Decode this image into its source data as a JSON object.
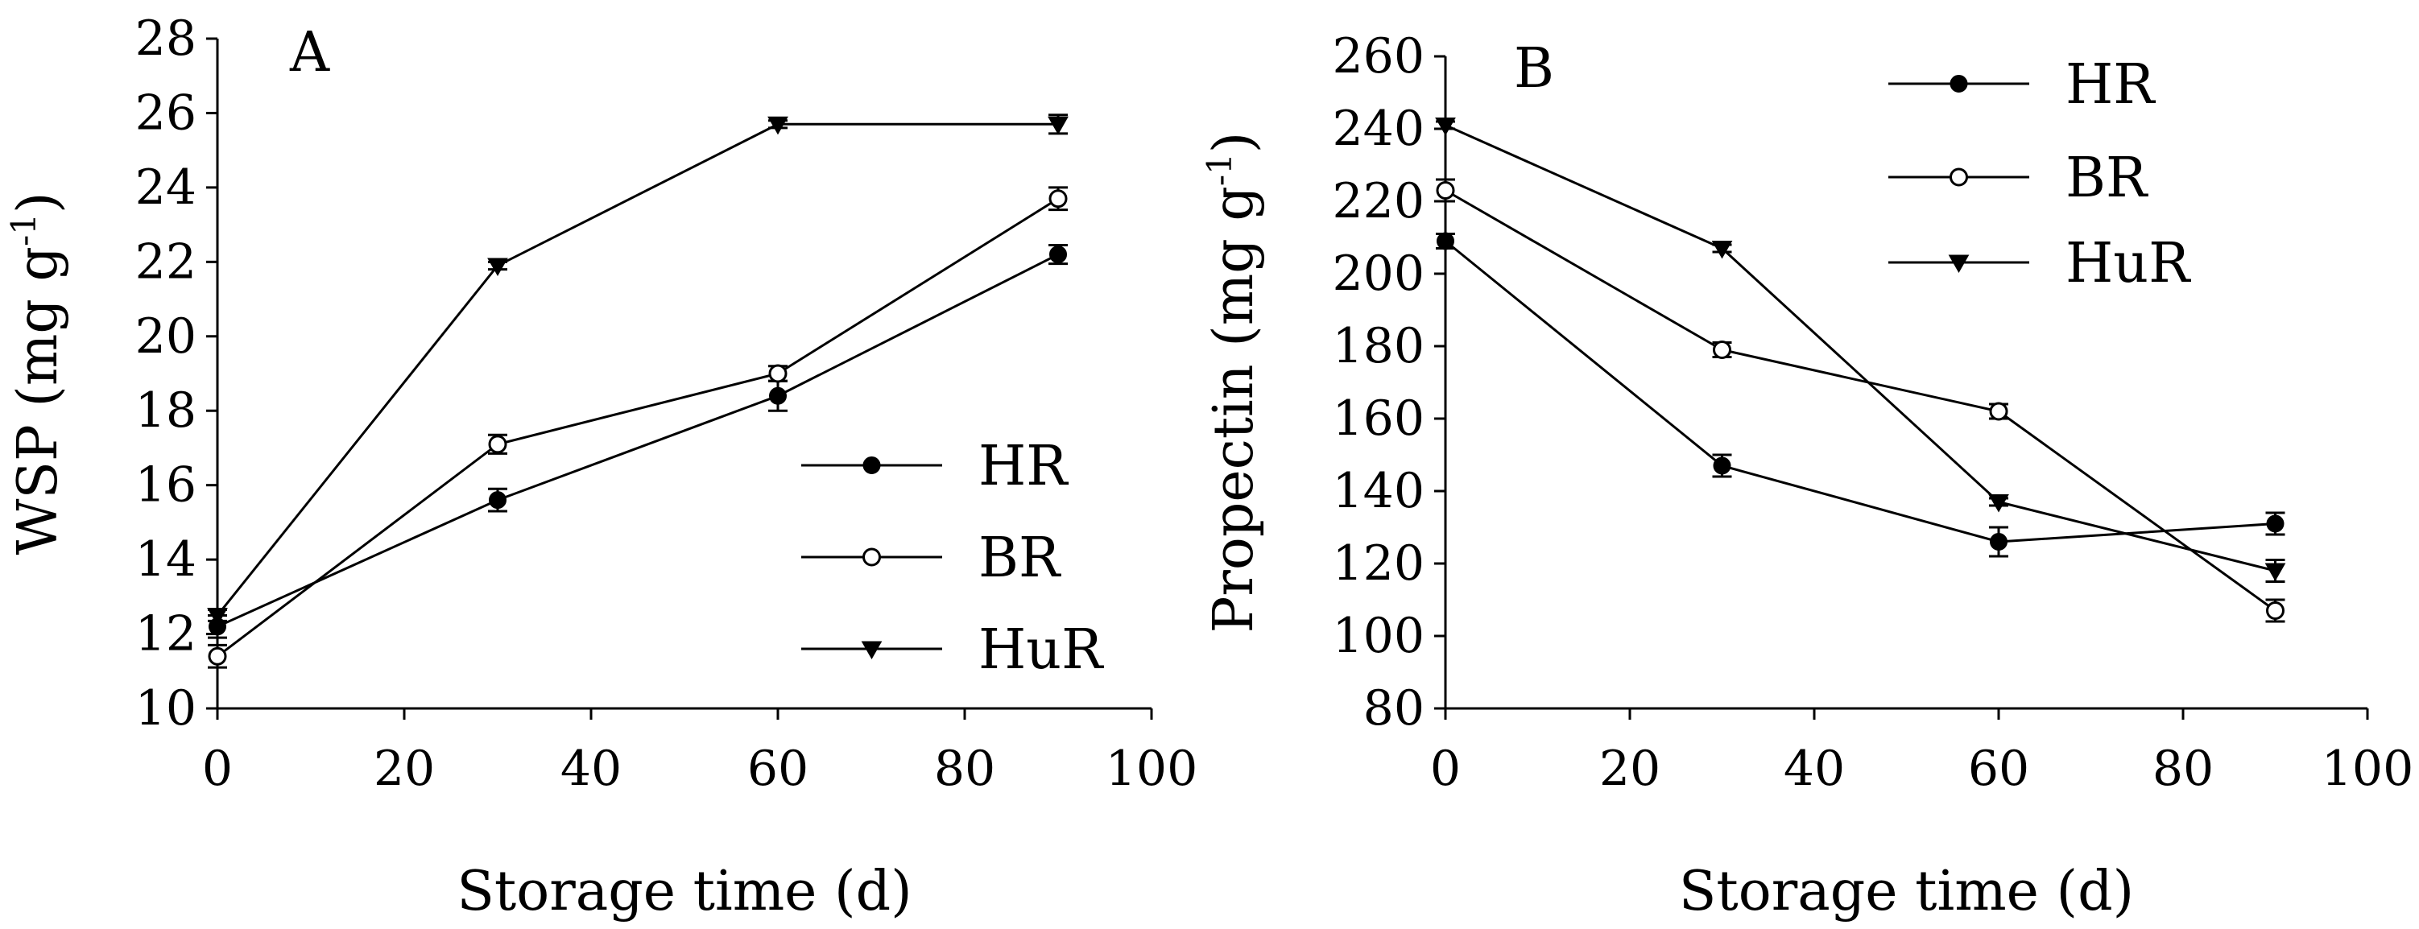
{
  "chart_data": [
    {
      "type": "line",
      "panel_label": "A",
      "xlabel": "Storage time (d)",
      "ylabel_main": "WSP (mg g",
      "ylabel_sup": "-1",
      "ylabel_close": ")",
      "xlim": [
        0,
        100
      ],
      "ylim": [
        10,
        28
      ],
      "xticks": [
        0,
        20,
        40,
        60,
        80,
        100
      ],
      "yticks": [
        10,
        12,
        14,
        16,
        18,
        20,
        22,
        24,
        26,
        28
      ],
      "legend_position": "bottom-right",
      "series": [
        {
          "name": "HR",
          "marker": "filled-circle",
          "x": [
            0,
            30,
            60,
            90
          ],
          "values": [
            12.2,
            15.6,
            18.4,
            22.2
          ],
          "errors": [
            0.3,
            0.3,
            0.4,
            0.25
          ]
        },
        {
          "name": "BR",
          "marker": "open-circle",
          "x": [
            0,
            30,
            60,
            90
          ],
          "values": [
            11.4,
            17.1,
            19.0,
            23.7
          ],
          "errors": [
            0.3,
            0.25,
            0.2,
            0.3
          ]
        },
        {
          "name": "HuR",
          "marker": "filled-triangle-down",
          "x": [
            0,
            30,
            60,
            90
          ],
          "values": [
            12.5,
            21.9,
            25.7,
            25.7
          ],
          "errors": [
            0.15,
            0.1,
            0.1,
            0.25
          ]
        }
      ]
    },
    {
      "type": "line",
      "panel_label": "B",
      "xlabel": "Storage time (d)",
      "ylabel_main": "Propectin (mg g",
      "ylabel_sup": "-1",
      "ylabel_close": ")",
      "xlim": [
        0,
        100
      ],
      "ylim": [
        80,
        260
      ],
      "xticks": [
        0,
        20,
        40,
        60,
        80,
        100
      ],
      "yticks": [
        80,
        100,
        120,
        140,
        160,
        180,
        200,
        220,
        240,
        260
      ],
      "legend_position": "top-right",
      "series": [
        {
          "name": "HR",
          "marker": "filled-circle",
          "x": [
            0,
            30,
            60,
            90
          ],
          "values": [
            209,
            147,
            126,
            131
          ],
          "errors": [
            2,
            3,
            4,
            3
          ]
        },
        {
          "name": "BR",
          "marker": "open-circle",
          "x": [
            0,
            30,
            60,
            90
          ],
          "values": [
            223,
            179,
            162,
            107
          ],
          "errors": [
            3,
            2,
            2,
            3
          ]
        },
        {
          "name": "HuR",
          "marker": "filled-triangle-down",
          "x": [
            0,
            30,
            60,
            90
          ],
          "values": [
            241,
            207,
            137,
            118
          ],
          "errors": [
            1,
            1,
            1,
            3
          ]
        }
      ]
    }
  ]
}
